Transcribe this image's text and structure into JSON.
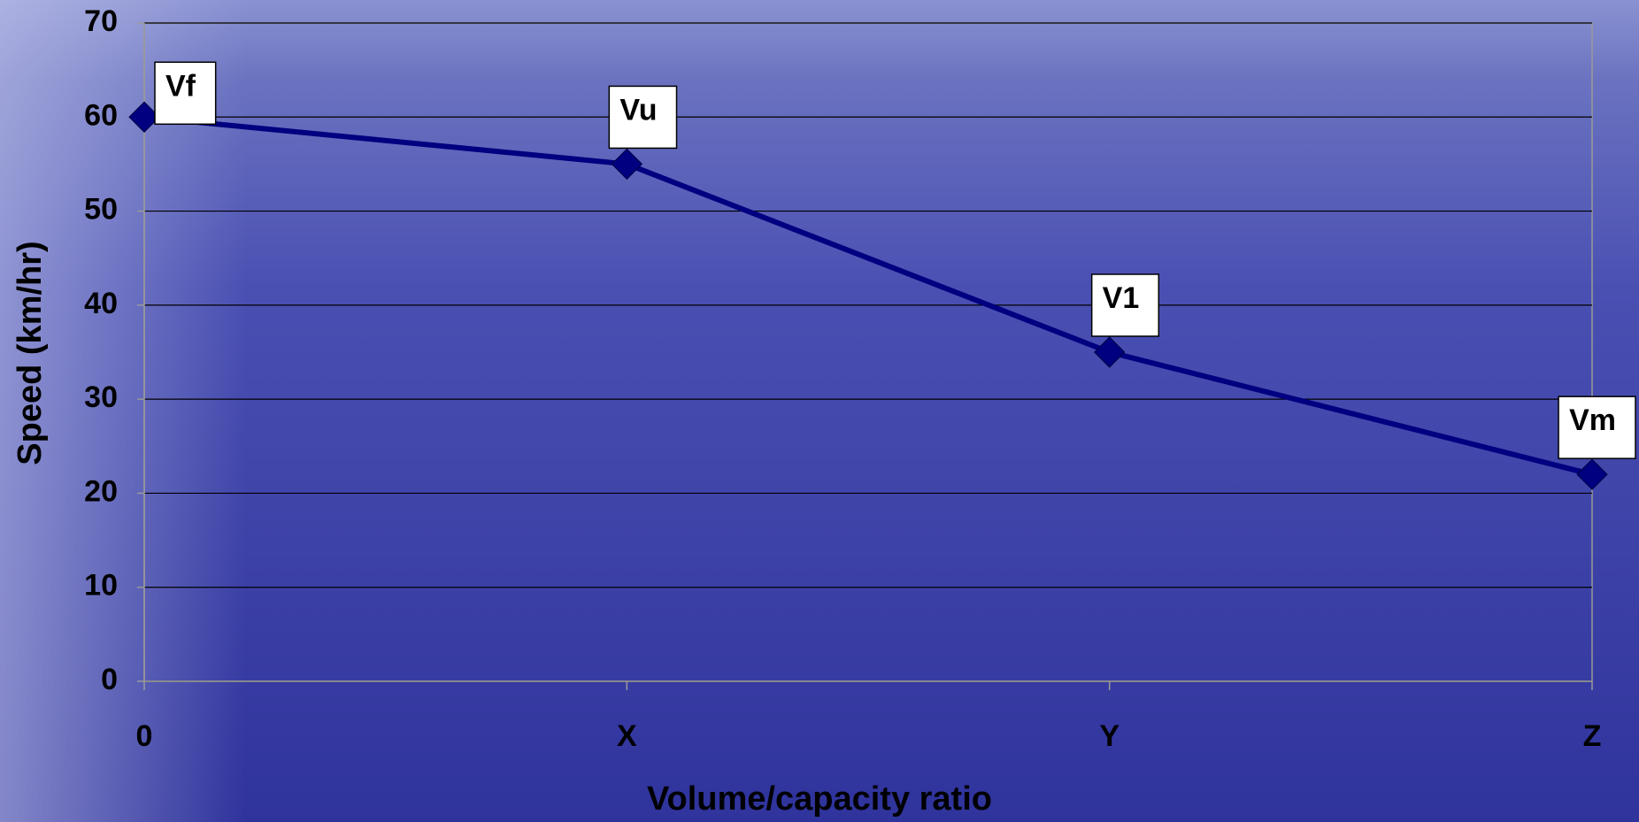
{
  "chart_data": {
    "type": "line",
    "x_label": "Volume/capacity ratio",
    "y_label": "Speed (km/hr)",
    "categories": [
      "0",
      "X",
      "Y",
      "Z"
    ],
    "series": [
      {
        "color": "#000080",
        "values": [
          60,
          55,
          35,
          22
        ]
      }
    ],
    "annotations": [
      "Vf",
      "Vu",
      "V1",
      "Vm"
    ],
    "ylim": [
      0,
      70
    ],
    "yticks": [
      0,
      10,
      20,
      30,
      40,
      50,
      60,
      70
    ],
    "grid": true
  }
}
